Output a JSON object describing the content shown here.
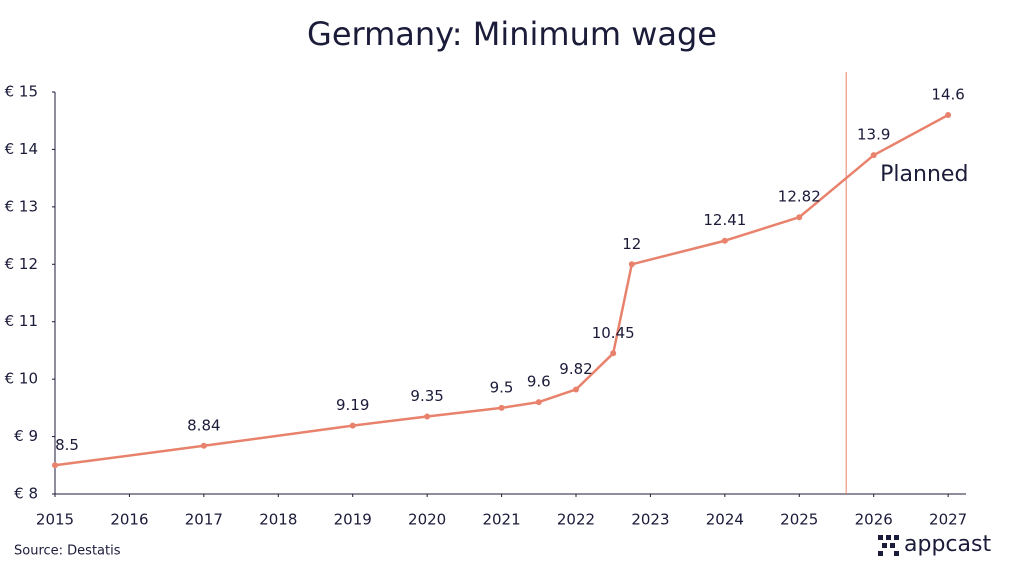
{
  "chart_data": {
    "type": "line",
    "title": "Germany: Minimum wage",
    "x": [
      2015,
      2017,
      2019,
      2020,
      2021,
      2021.5,
      2022,
      2022.5,
      2022.75,
      2024,
      2025,
      2026,
      2027
    ],
    "series": [
      {
        "name": "Minimum wage",
        "color": "#e8826c",
        "values": [
          8.5,
          8.84,
          9.19,
          9.35,
          9.5,
          9.6,
          9.82,
          10.45,
          12,
          12.41,
          12.82,
          13.9,
          14.6
        ]
      }
    ],
    "xlim": [
      2015,
      2027.24
    ],
    "xticks": [
      2015,
      2016,
      2017,
      2018,
      2019,
      2020,
      2021,
      2022,
      2023,
      2024,
      2025,
      2026,
      2027
    ],
    "ylim": [
      8,
      15
    ],
    "yticks": [
      {
        "value": 8,
        "label": "€ 8"
      },
      {
        "value": 9,
        "label": "€ 9"
      },
      {
        "value": 10,
        "label": "€ 10"
      },
      {
        "value": 11,
        "label": "€ 11"
      },
      {
        "value": 12,
        "label": "€ 12"
      },
      {
        "value": 13,
        "label": "€ 13"
      },
      {
        "value": 14,
        "label": "€ 14"
      },
      {
        "value": 15,
        "label": "€ 15"
      }
    ],
    "grid": false,
    "annotation": {
      "text": "Planned",
      "x": 2025.63,
      "color": "#e8826c"
    }
  },
  "footer": {
    "source": "Source: Destatis",
    "logo": "appcast"
  }
}
